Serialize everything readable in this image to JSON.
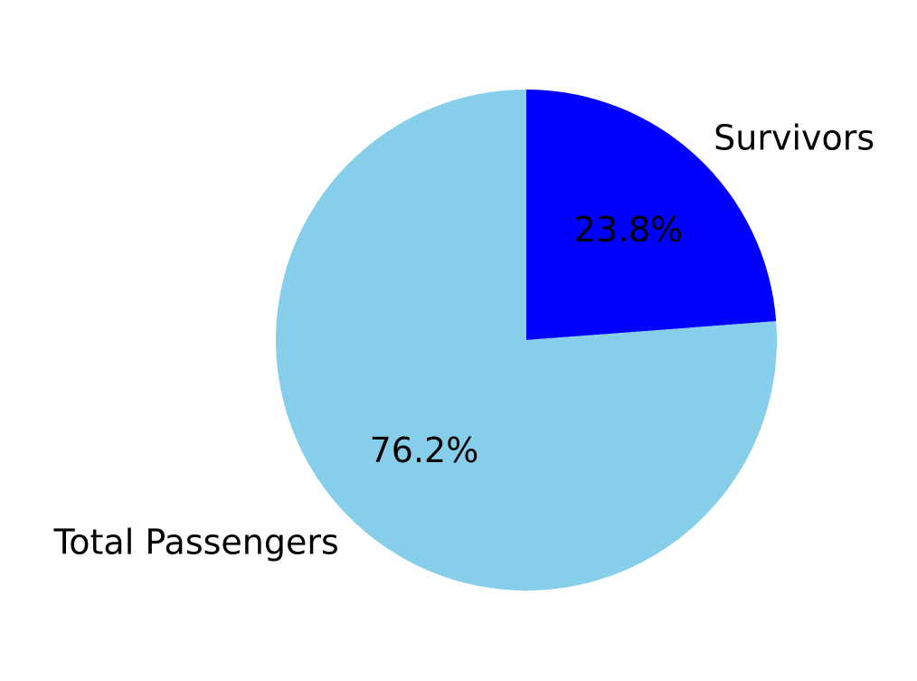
{
  "chart_data": {
    "type": "pie",
    "categories": [
      "Survivors",
      "Total Passengers"
    ],
    "values": [
      23.8,
      76.2
    ],
    "percent_labels": [
      "23.8%",
      "76.2%"
    ],
    "colors": [
      "#0000ff",
      "#87ceeb"
    ],
    "start_angle_deg": 90,
    "direction": "clockwise",
    "title": "",
    "legend": "none"
  }
}
